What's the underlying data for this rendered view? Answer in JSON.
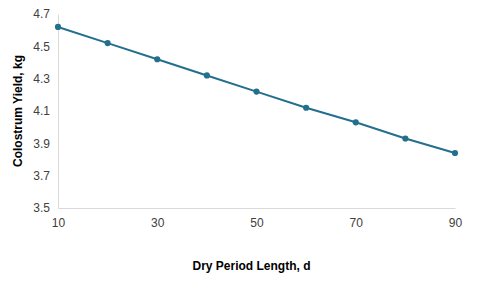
{
  "chart_data": {
    "type": "line",
    "x_label": "Dry Period Length, d",
    "y_label": "Colostrum Yield, kg",
    "x": [
      10,
      20,
      30,
      40,
      50,
      60,
      70,
      80,
      90
    ],
    "values": [
      4.62,
      4.52,
      4.42,
      4.32,
      4.22,
      4.12,
      4.03,
      3.93,
      3.84
    ],
    "color": "#236f8e",
    "marker": "circle",
    "line_style": "solid",
    "xlim": [
      10,
      90
    ],
    "xticks": [
      10,
      30,
      50,
      70,
      90
    ],
    "ylim": [
      3.5,
      4.7
    ],
    "yticks": [
      3.5,
      3.7,
      3.9,
      4.1,
      4.3,
      4.5,
      4.7
    ],
    "grid": false
  }
}
